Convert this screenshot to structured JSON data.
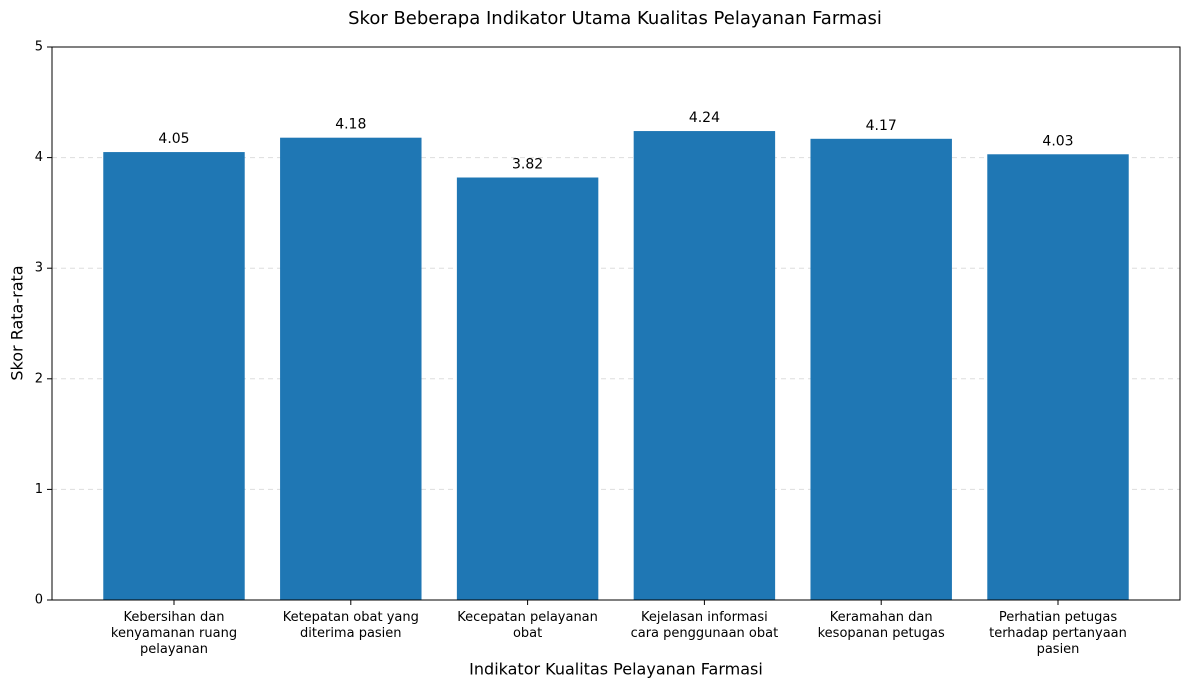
{
  "chart_data": {
    "type": "bar",
    "title": "Skor Beberapa Indikator Utama Kualitas Pelayanan Farmasi",
    "x_label": "Indikator Kualitas Pelayanan Farmasi",
    "y_label": "Skor Rata-rata",
    "categories": [
      "Kebersihan dan\nkenyamanan ruang\npelayanan",
      "Ketepatan obat yang\nditerima pasien",
      "Kecepatan pelayanan\nobat",
      "Kejelasan informasi\ncara penggunaan obat",
      "Keramahan dan\nkesopanan petugas",
      "Perhatian petugas\nterhadap pertanyaan\npasien"
    ],
    "values": [
      4.05,
      4.18,
      3.82,
      4.24,
      4.17,
      4.03
    ],
    "color": "#1f77b4",
    "ylim": [
      0,
      5
    ],
    "yticks": [
      0,
      1,
      2,
      3,
      4,
      5
    ],
    "grid": true
  }
}
